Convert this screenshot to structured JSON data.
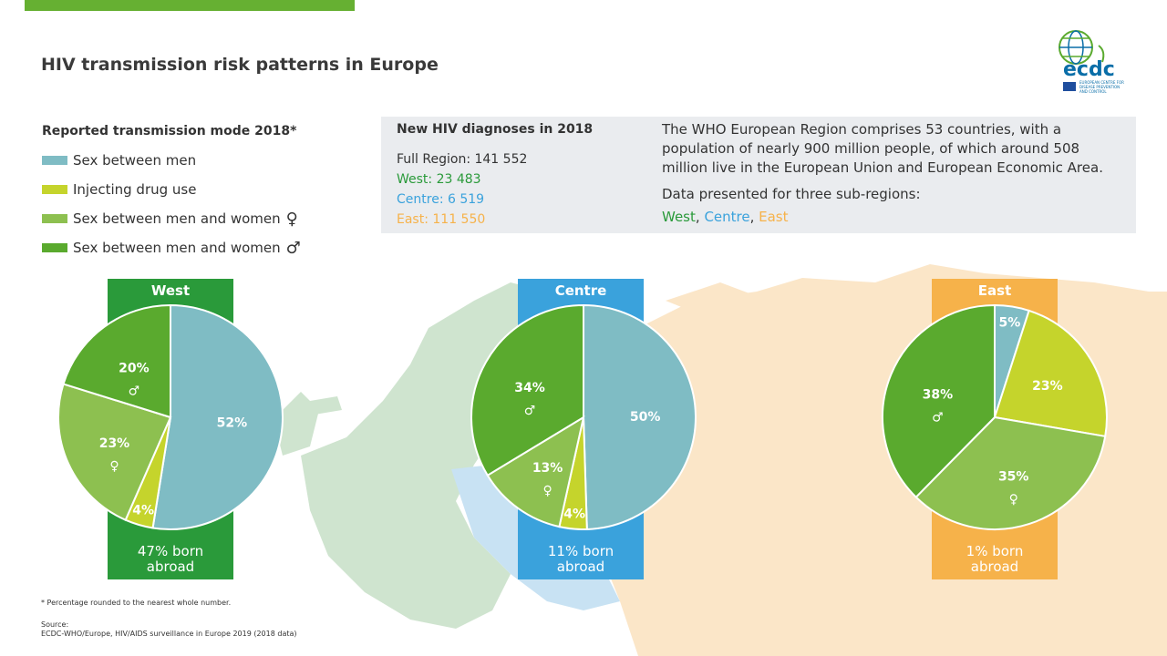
{
  "title": "HIV transmission risk patterns in Europe",
  "logo": {
    "name": "ecdc",
    "subtitle": "EUROPEAN CENTRE FOR DISEASE PREVENTION AND CONTROL"
  },
  "colors": {
    "sex_between_men": "#7fbcc4",
    "injecting_drug_use": "#c5d42c",
    "heterosexual_women": "#8dc050",
    "heterosexual_men": "#5aaa2e",
    "west": "#2a9a3a",
    "centre": "#3aa2dc",
    "east": "#f6b24a",
    "map_west": "#cfe4cf",
    "map_centre": "#c8e2f3",
    "map_east": "#fbe6c8"
  },
  "legend": {
    "title": "Reported transmission mode 2018*",
    "items": [
      {
        "label": "Sex between men",
        "symbol": ""
      },
      {
        "label": "Injecting drug use",
        "symbol": ""
      },
      {
        "label": "Sex between men and women",
        "symbol": "♀"
      },
      {
        "label": "Sex between men and women",
        "symbol": "♂"
      }
    ]
  },
  "infobox": {
    "heading": "New HIV diagnoses in 2018",
    "full_region": "Full Region: 141 552",
    "west": "West: 23 483",
    "centre": "Centre: 6 519",
    "east": "East: 111 550",
    "description": "The WHO European Region comprises 53 countries, with a population of nearly 900 million people, of which around 508 million live in the European Union and European Economic Area.",
    "subregions_intro": "Data presented for three sub-regions:",
    "subregion_west": "West",
    "subregion_centre": "Centre",
    "subregion_east": "East",
    "sep1": ", ",
    "sep2": ", "
  },
  "chart_data": [
    {
      "type": "pie",
      "title": "West",
      "categories": [
        "Sex between men",
        "Injecting drug use",
        "Sex between men and women ♀",
        "Sex between men and women ♂"
      ],
      "values": [
        52,
        4,
        23,
        20
      ],
      "labels": [
        "52%",
        "4%",
        "23%",
        "20%"
      ],
      "symbols": [
        "",
        "",
        "♀",
        "♂"
      ],
      "footer": "47% born abroad",
      "footer_line1": "47% born",
      "footer_line2": "abroad"
    },
    {
      "type": "pie",
      "title": "Centre",
      "categories": [
        "Sex between men",
        "Injecting drug use",
        "Sex between men and women ♀",
        "Sex between men and women ♂"
      ],
      "values": [
        50,
        4,
        13,
        34
      ],
      "labels": [
        "50%",
        "4%",
        "13%",
        "34%"
      ],
      "symbols": [
        "",
        "",
        "♀",
        "♂"
      ],
      "footer": "11% born abroad",
      "footer_line1": "11% born",
      "footer_line2": "abroad"
    },
    {
      "type": "pie",
      "title": "East",
      "categories": [
        "Sex between men",
        "Injecting drug use",
        "Sex between men and women ♀",
        "Sex between men and women ♂"
      ],
      "values": [
        5,
        23,
        35,
        38
      ],
      "labels": [
        "5%",
        "23%",
        "35%",
        "38%"
      ],
      "symbols": [
        "",
        "",
        "♀",
        "♂"
      ],
      "footer": "1% born abroad",
      "footer_line1": "1% born",
      "footer_line2": "abroad"
    }
  ],
  "footnote": "* Percentage rounded to the nearest whole number.",
  "source_label": "Source:",
  "source_text": "ECDC-WHO/Europe, HIV/AIDS surveillance in Europe 2019 (2018 data)"
}
